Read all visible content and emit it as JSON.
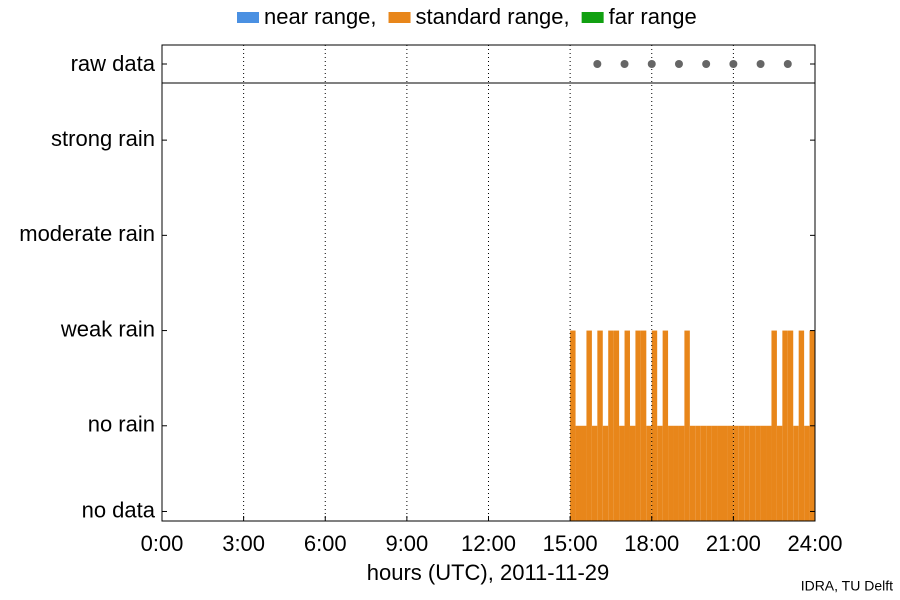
{
  "chart_data": {
    "type": "bar",
    "x_label": "hours (UTC), 2011-11-29",
    "credit": "IDRA, TU Delft",
    "xlim": [
      0,
      24
    ],
    "xticks": [
      {
        "value": 0,
        "label": "0:00"
      },
      {
        "value": 3,
        "label": "3:00"
      },
      {
        "value": 6,
        "label": "6:00"
      },
      {
        "value": 9,
        "label": "9:00"
      },
      {
        "value": 12,
        "label": "12:00"
      },
      {
        "value": 15,
        "label": "15:00"
      },
      {
        "value": 18,
        "label": "18:00"
      },
      {
        "value": 21,
        "label": "21:00"
      },
      {
        "value": 24,
        "label": "24:00"
      }
    ],
    "ylim": [
      0,
      4.6
    ],
    "yticks": [
      {
        "value": 0.1,
        "label": "no data"
      },
      {
        "value": 1,
        "label": "no rain"
      },
      {
        "value": 2,
        "label": "weak rain"
      },
      {
        "value": 3,
        "label": "moderate rain"
      },
      {
        "value": 4,
        "label": "strong rain"
      }
    ],
    "grid": true,
    "bar_width": 0.2,
    "raw_data": {
      "label": "raw data",
      "color": "#666666",
      "x": [
        16,
        17,
        18,
        19,
        20,
        21,
        22,
        23
      ]
    },
    "x": [
      15.0,
      15.2,
      15.4,
      15.6,
      15.8,
      16.0,
      16.2,
      16.4,
      16.6,
      16.8,
      17.0,
      17.2,
      17.4,
      17.6,
      17.8,
      18.0,
      18.2,
      18.4,
      18.6,
      18.8,
      19.0,
      19.2,
      19.4,
      19.6,
      19.8,
      20.0,
      20.2,
      20.4,
      20.6,
      20.8,
      21.0,
      21.2,
      21.4,
      21.6,
      21.8,
      22.0,
      22.2,
      22.4,
      22.6,
      22.8,
      23.0,
      23.2,
      23.4,
      23.6,
      23.8
    ],
    "series": [
      {
        "name": "near range,",
        "color": "#4a90e2",
        "values": [
          null,
          null,
          null,
          null,
          null,
          null,
          null,
          null,
          null,
          null,
          null,
          null,
          null,
          null,
          null,
          null,
          null,
          null,
          null,
          null,
          null,
          null,
          null,
          null,
          null,
          null,
          null,
          null,
          null,
          null,
          null,
          null,
          null,
          null,
          null,
          null,
          null,
          null,
          null,
          null,
          null,
          null,
          null,
          null,
          null
        ]
      },
      {
        "name": "standard range,",
        "color": "#e8861a",
        "values": [
          2,
          1,
          1,
          2,
          1,
          2,
          1,
          2,
          2,
          1,
          2,
          1,
          2,
          2,
          1,
          2,
          1,
          2,
          1,
          1,
          1,
          2,
          1,
          1,
          1,
          1,
          1,
          1,
          1,
          1,
          1,
          1,
          1,
          1,
          1,
          1,
          1,
          2,
          1,
          2,
          2,
          1,
          2,
          1,
          2
        ]
      },
      {
        "name": "far range",
        "color": "#11a011",
        "values": [
          null,
          null,
          null,
          null,
          null,
          null,
          null,
          null,
          null,
          null,
          null,
          null,
          null,
          null,
          null,
          null,
          null,
          null,
          null,
          null,
          null,
          null,
          null,
          null,
          null,
          null,
          null,
          null,
          null,
          null,
          null,
          null,
          null,
          null,
          null,
          null,
          null,
          null,
          null,
          null,
          null,
          null,
          null,
          null,
          null
        ]
      }
    ]
  }
}
